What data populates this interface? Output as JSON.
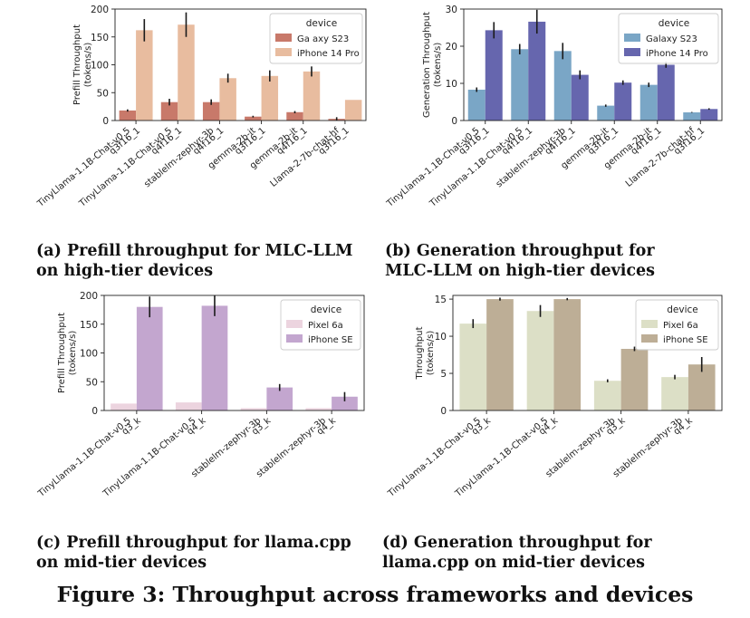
{
  "chart_data": [
    {
      "id": "a",
      "type": "bar",
      "ylabel": "Prefill Throughput\n(tokens/s)",
      "ylim": [
        0,
        200
      ],
      "yticks": [
        0,
        50,
        100,
        150,
        200
      ],
      "categories": [
        "TinyLlama-1.1B-Chat-v0.5\nq3f16_1",
        "TinyLlama-1.1B-Chat-v0.5\nq4f16_1",
        "stablelm-zephyr-3b\nq4f16_1",
        "gemma-2b-it\nq3f16_1",
        "gemma-2b-it\nq4f16_1",
        "Llama-2-7b-chat-hf\nq3f16_1"
      ],
      "legend_title": "device",
      "legend_position": "top-right",
      "series": [
        {
          "name": "Ga axy S23",
          "color": "#c8796a",
          "values": [
            18,
            33,
            33,
            7,
            15,
            3
          ],
          "err": [
            2,
            6,
            5,
            1.5,
            2,
            3
          ]
        },
        {
          "name": "iPhone 14 Pro",
          "color": "#e8bc9f",
          "values": [
            162,
            172,
            76,
            80,
            88,
            37
          ],
          "err": [
            20,
            22,
            8,
            10,
            9,
            0
          ]
        }
      ]
    },
    {
      "id": "b",
      "type": "bar",
      "ylabel": "Generation Throughput\n(tokens/s)",
      "ylim": [
        0,
        30
      ],
      "yticks": [
        0,
        10,
        20,
        30
      ],
      "categories": [
        "TinyLlama-1.1B-Chat-v0.5\nq3f16_1",
        "TinyLlama-1.1B-Chat-v0.5\nq4f16_1",
        "stablelm-zephyr-3b\nq4f16_1",
        "gemma-2b-it\nq3f16_1",
        "gemma-2b-it\nq4f16_1",
        "Llama-2-7b-chat-hf\nq3f16_1"
      ],
      "legend_title": "device",
      "legend_position": "top-right",
      "series": [
        {
          "name": "Galaxy S23",
          "color": "#7aa6c6",
          "values": [
            8.3,
            19.2,
            18.7,
            4.0,
            9.6,
            2.2
          ],
          "err": [
            0.6,
            1.4,
            2.2,
            0.3,
            0.6,
            0.1
          ]
        },
        {
          "name": "iPhone 14 Pro",
          "color": "#6666ae",
          "values": [
            24.3,
            26.6,
            12.3,
            10.2,
            15.0,
            3.1
          ],
          "err": [
            2.2,
            3.2,
            1.2,
            0.6,
            0.8,
            0.2
          ]
        }
      ]
    },
    {
      "id": "c",
      "type": "bar",
      "ylabel": "Prefill Throughput\n(tokens/s)",
      "ylim": [
        0,
        200
      ],
      "yticks": [
        0,
        50,
        100,
        150,
        200
      ],
      "categories": [
        "TinyLlama-1.1B-Chat-v0.5\nq3_k",
        "TinyLlama-1.1B-Chat-v0.5\nq4_k",
        "stablelm-zephyr-3b\nq3_k",
        "stablelm-zephyr-3b\nq4_k"
      ],
      "legend_title": "device",
      "legend_position": "top-right",
      "series": [
        {
          "name": "Pixel 6a",
          "color": "#ecd4df",
          "values": [
            12,
            14,
            4,
            4
          ],
          "err": [
            0,
            0,
            0,
            0
          ]
        },
        {
          "name": "iPhone SE",
          "color": "#c3a6cf",
          "values": [
            180,
            182,
            40,
            24
          ],
          "err": [
            18,
            18,
            6,
            8
          ]
        }
      ]
    },
    {
      "id": "d",
      "type": "bar",
      "ylabel": "Throughput\n(tokens/s)",
      "ylim": [
        0,
        15.5
      ],
      "yticks": [
        0,
        5,
        10,
        15
      ],
      "categories": [
        "TinyLlama-1.1B-Chat-v0.5\nq3_k",
        "TinyLlama-1.1B-Chat-v0.5\nq4_k",
        "stablelm-zephyr-3b\nq3_k",
        "stablelm-zephyr-3b\nq4_k"
      ],
      "legend_title": "device",
      "legend_position": "top-right",
      "series": [
        {
          "name": "Pixel 6a",
          "color": "#dcdfc6",
          "values": [
            11.7,
            13.4,
            4.0,
            4.5
          ],
          "err": [
            0.6,
            0.8,
            0.2,
            0.3
          ]
        },
        {
          "name": "iPhone SE",
          "color": "#bdae96",
          "values": [
            15.0,
            15.0,
            8.3,
            6.2
          ],
          "err": [
            0.2,
            0.15,
            0.3,
            1.0
          ]
        }
      ]
    }
  ],
  "captions": {
    "a": [
      "(a) Prefill throughput for MLC-LLM",
      "on high-tier devices"
    ],
    "b": [
      "(b) Generation throughput for",
      "MLC-LLM on high-tier devices"
    ],
    "c": [
      "(c) Prefill throughput for llama.cpp",
      "on mid-tier devices"
    ],
    "d": [
      "(d) Generation throughput for",
      "llama.cpp on mid-tier devices"
    ]
  },
  "figure_caption": "Figure 3: Throughput across frameworks and devices"
}
